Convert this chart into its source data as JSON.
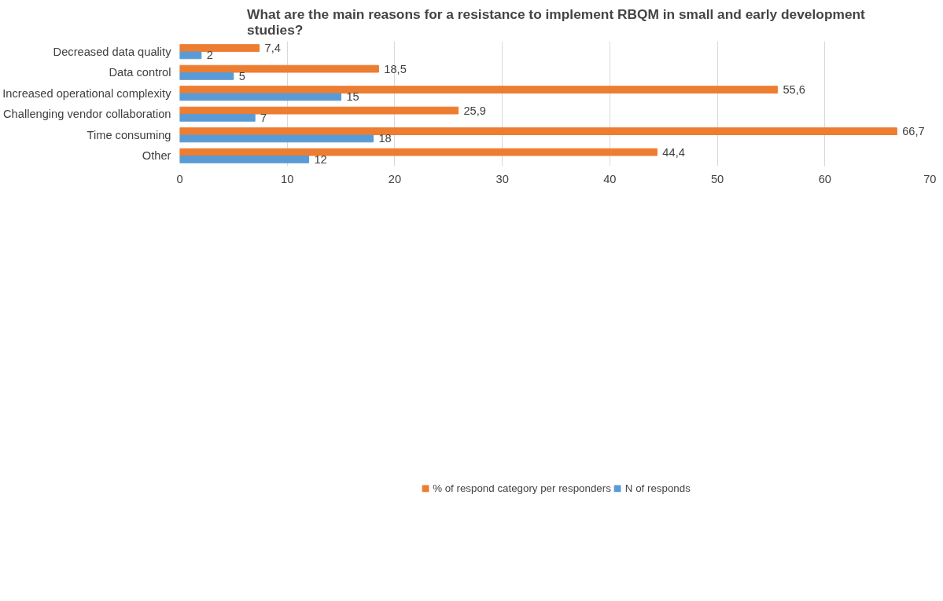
{
  "chart_data": {
    "type": "bar",
    "orientation": "horizontal",
    "title": "What are the main reasons for a resistance to implement RBQM in small and early development studies?",
    "categories": [
      "Decreased data quality",
      "Data control",
      "Increased operational complexity",
      "Challenging vendor collaboration",
      "Time consuming",
      "Other"
    ],
    "series": [
      {
        "name": "% of respond category per responders",
        "color": "#ed7d31",
        "values": [
          7.4,
          18.5,
          55.6,
          25.9,
          66.7,
          44.4
        ],
        "value_labels": [
          "7,4",
          "18,5",
          "55,6",
          "25,9",
          "66,7",
          "44,4"
        ]
      },
      {
        "name": "N of responds",
        "color": "#5b9bd5",
        "values": [
          2,
          5,
          15,
          7,
          18,
          12
        ],
        "value_labels": [
          "2",
          "5",
          "15",
          "7",
          "18",
          "12"
        ]
      }
    ],
    "xlim": [
      0,
      70
    ],
    "xticks": [
      0,
      10,
      20,
      30,
      40,
      50,
      60,
      70
    ],
    "grid": "x",
    "legend": "bottom"
  }
}
